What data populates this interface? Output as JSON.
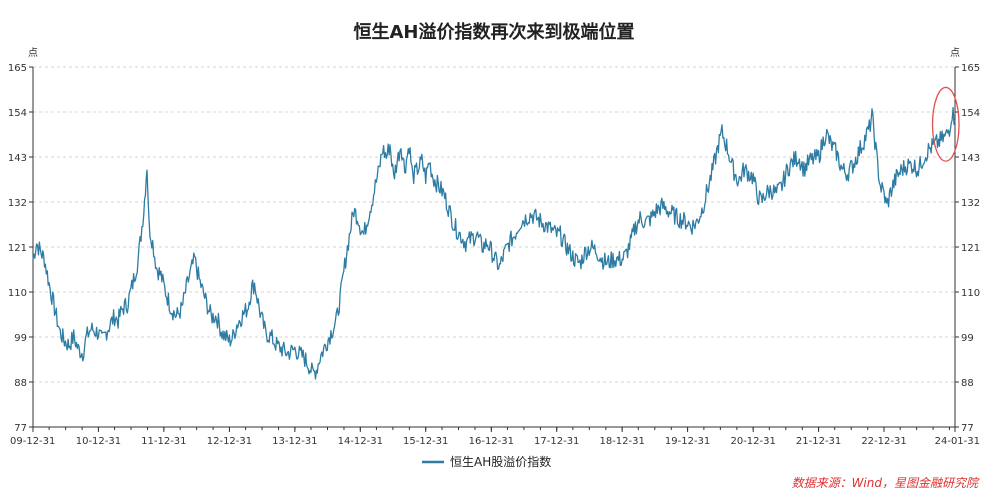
{
  "chart_data": {
    "type": "line",
    "title": "恒生AH溢价指数再次来到极端位置",
    "y_unit_left": "点",
    "y_unit_right": "点",
    "ylim": [
      77,
      165
    ],
    "yticks": [
      77,
      88,
      99,
      110,
      121,
      132,
      143,
      154,
      165
    ],
    "xlim": [
      "2009-12-31",
      "2024-01-31"
    ],
    "xticks": [
      "09-12-31",
      "10-12-31",
      "11-12-31",
      "12-12-31",
      "13-12-31",
      "14-12-31",
      "15-12-31",
      "16-12-31",
      "17-12-31",
      "18-12-31",
      "19-12-31",
      "20-12-31",
      "21-12-31",
      "22-12-31",
      "24-01-31"
    ],
    "grid": "horizontal dashed",
    "legend_position": "bottom",
    "series": [
      {
        "name": "恒生AH股溢价指数",
        "color": "#2e7ca3",
        "points": [
          [
            "2009-12-31",
            118
          ],
          [
            "2010-01-20",
            122
          ],
          [
            "2010-02-10",
            120
          ],
          [
            "2010-03-05",
            118
          ],
          [
            "2010-03-31",
            112
          ],
          [
            "2010-04-20",
            108
          ],
          [
            "2010-05-10",
            104
          ],
          [
            "2010-06-01",
            100
          ],
          [
            "2010-06-25",
            98
          ],
          [
            "2010-07-20",
            97
          ],
          [
            "2010-08-15",
            99
          ],
          [
            "2010-09-10",
            96
          ],
          [
            "2010-10-05",
            95
          ],
          [
            "2010-10-25",
            99
          ],
          [
            "2010-11-20",
            101
          ],
          [
            "2010-12-31",
            100
          ],
          [
            "2011-01-20",
            98
          ],
          [
            "2011-02-10",
            100
          ],
          [
            "2011-03-05",
            102
          ],
          [
            "2011-03-31",
            104
          ],
          [
            "2011-04-20",
            103
          ],
          [
            "2011-05-15",
            106
          ],
          [
            "2011-06-10",
            107
          ],
          [
            "2011-07-10",
            112
          ],
          [
            "2011-08-10",
            118
          ],
          [
            "2011-09-10",
            130
          ],
          [
            "2011-09-28",
            141
          ],
          [
            "2011-10-10",
            126
          ],
          [
            "2011-10-30",
            122
          ],
          [
            "2011-11-20",
            116
          ],
          [
            "2011-12-15",
            114
          ],
          [
            "2012-01-10",
            110
          ],
          [
            "2012-02-10",
            106
          ],
          [
            "2012-03-10",
            104
          ],
          [
            "2012-04-10",
            106
          ],
          [
            "2012-05-10",
            112
          ],
          [
            "2012-06-05",
            116
          ],
          [
            "2012-06-20",
            118
          ],
          [
            "2012-07-15",
            113
          ],
          [
            "2012-08-20",
            108
          ],
          [
            "2012-09-20",
            104
          ],
          [
            "2012-10-20",
            104
          ],
          [
            "2012-11-20",
            100
          ],
          [
            "2012-12-31",
            98
          ],
          [
            "2013-01-20",
            99
          ],
          [
            "2013-02-10",
            102
          ],
          [
            "2013-03-10",
            104
          ],
          [
            "2013-04-10",
            106
          ],
          [
            "2013-05-05",
            111
          ],
          [
            "2013-05-20",
            112
          ],
          [
            "2013-06-20",
            105
          ],
          [
            "2013-07-20",
            100
          ],
          [
            "2013-08-20",
            99
          ],
          [
            "2013-09-20",
            97
          ],
          [
            "2013-10-20",
            96
          ],
          [
            "2013-11-20",
            95
          ],
          [
            "2013-12-31",
            96
          ],
          [
            "2014-01-20",
            95
          ],
          [
            "2014-02-20",
            94
          ],
          [
            "2014-03-20",
            92
          ],
          [
            "2014-04-10",
            90
          ],
          [
            "2014-04-30",
            91
          ],
          [
            "2014-05-20",
            94
          ],
          [
            "2014-06-20",
            97
          ],
          [
            "2014-07-20",
            100
          ],
          [
            "2014-08-20",
            103
          ],
          [
            "2014-09-15",
            110
          ],
          [
            "2014-10-10",
            118
          ],
          [
            "2014-11-05",
            125
          ],
          [
            "2014-11-25",
            130
          ],
          [
            "2014-12-20",
            128
          ],
          [
            "2014-12-31",
            126
          ],
          [
            "2015-01-20",
            124
          ],
          [
            "2015-02-10",
            128
          ],
          [
            "2015-03-05",
            132
          ],
          [
            "2015-03-25",
            136
          ],
          [
            "2015-04-15",
            140
          ],
          [
            "2015-05-05",
            145
          ],
          [
            "2015-05-25",
            143
          ],
          [
            "2015-06-15",
            146
          ],
          [
            "2015-07-05",
            138
          ],
          [
            "2015-07-25",
            142
          ],
          [
            "2015-08-15",
            146
          ],
          [
            "2015-09-05",
            140
          ],
          [
            "2015-09-30",
            146
          ],
          [
            "2015-10-20",
            138
          ],
          [
            "2015-11-15",
            140
          ],
          [
            "2015-12-10",
            142
          ],
          [
            "2015-12-31",
            138
          ],
          [
            "2016-01-20",
            142
          ],
          [
            "2016-02-10",
            138
          ],
          [
            "2016-03-10",
            136
          ],
          [
            "2016-04-10",
            134
          ],
          [
            "2016-05-10",
            130
          ],
          [
            "2016-06-10",
            126
          ],
          [
            "2016-07-10",
            124
          ],
          [
            "2016-08-10",
            122
          ],
          [
            "2016-09-10",
            123
          ],
          [
            "2016-10-10",
            124
          ],
          [
            "2016-11-10",
            121
          ],
          [
            "2016-12-10",
            122
          ],
          [
            "2016-12-31",
            120
          ],
          [
            "2017-01-20",
            118
          ],
          [
            "2017-02-15",
            116
          ],
          [
            "2017-03-10",
            119
          ],
          [
            "2017-04-10",
            122
          ],
          [
            "2017-05-10",
            124
          ],
          [
            "2017-06-10",
            127
          ],
          [
            "2017-07-10",
            128
          ],
          [
            "2017-08-10",
            129
          ],
          [
            "2017-09-10",
            128
          ],
          [
            "2017-10-10",
            127
          ],
          [
            "2017-11-10",
            126
          ],
          [
            "2017-12-31",
            124
          ],
          [
            "2018-01-20",
            124
          ],
          [
            "2018-02-10",
            122
          ],
          [
            "2018-03-10",
            120
          ],
          [
            "2018-04-10",
            118
          ],
          [
            "2018-05-10",
            117
          ],
          [
            "2018-06-10",
            120
          ],
          [
            "2018-07-10",
            121
          ],
          [
            "2018-08-10",
            120
          ],
          [
            "2018-09-10",
            118
          ],
          [
            "2018-10-10",
            117
          ],
          [
            "2018-11-10",
            118
          ],
          [
            "2018-12-31",
            118
          ],
          [
            "2019-01-20",
            119
          ],
          [
            "2019-02-15",
            122
          ],
          [
            "2019-03-15",
            126
          ],
          [
            "2019-04-10",
            128
          ],
          [
            "2019-05-10",
            127
          ],
          [
            "2019-06-10",
            128
          ],
          [
            "2019-07-10",
            130
          ],
          [
            "2019-08-10",
            131
          ],
          [
            "2019-09-10",
            130
          ],
          [
            "2019-10-10",
            129
          ],
          [
            "2019-11-10",
            128
          ],
          [
            "2019-12-31",
            127
          ],
          [
            "2020-01-20",
            126
          ],
          [
            "2020-02-20",
            127
          ],
          [
            "2020-03-20",
            130
          ],
          [
            "2020-04-20",
            135
          ],
          [
            "2020-05-20",
            140
          ],
          [
            "2020-06-20",
            146
          ],
          [
            "2020-07-10",
            149
          ],
          [
            "2020-08-10",
            145
          ],
          [
            "2020-09-10",
            140
          ],
          [
            "2020-10-10",
            137
          ],
          [
            "2020-11-10",
            140
          ],
          [
            "2020-12-31",
            138
          ],
          [
            "2021-01-20",
            134
          ],
          [
            "2021-02-15",
            132
          ],
          [
            "2021-03-10",
            134
          ],
          [
            "2021-04-10",
            135
          ],
          [
            "2021-05-10",
            134
          ],
          [
            "2021-06-10",
            136
          ],
          [
            "2021-07-10",
            140
          ],
          [
            "2021-08-10",
            142
          ],
          [
            "2021-09-10",
            143
          ],
          [
            "2021-10-10",
            140
          ],
          [
            "2021-11-10",
            142
          ],
          [
            "2021-12-31",
            143
          ],
          [
            "2022-01-20",
            146
          ],
          [
            "2022-02-10",
            149
          ],
          [
            "2022-03-10",
            146
          ],
          [
            "2022-04-10",
            144
          ],
          [
            "2022-05-10",
            140
          ],
          [
            "2022-06-10",
            139
          ],
          [
            "2022-07-10",
            141
          ],
          [
            "2022-08-10",
            144
          ],
          [
            "2022-09-10",
            147
          ],
          [
            "2022-10-10",
            150
          ],
          [
            "2022-10-25",
            153
          ],
          [
            "2022-11-05",
            149
          ],
          [
            "2022-11-20",
            143
          ],
          [
            "2022-12-10",
            136
          ],
          [
            "2022-12-31",
            134
          ],
          [
            "2023-01-15",
            131
          ],
          [
            "2023-02-10",
            135
          ],
          [
            "2023-03-10",
            138
          ],
          [
            "2023-04-10",
            140
          ],
          [
            "2023-05-10",
            141
          ],
          [
            "2023-06-10",
            141
          ],
          [
            "2023-07-10",
            140
          ],
          [
            "2023-08-10",
            143
          ],
          [
            "2023-09-10",
            145
          ],
          [
            "2023-10-10",
            146
          ],
          [
            "2023-11-10",
            147
          ],
          [
            "2023-12-10",
            148
          ],
          [
            "2023-12-31",
            150
          ],
          [
            "2024-01-15",
            154
          ],
          [
            "2024-01-31",
            152
          ]
        ]
      }
    ],
    "annotation": {
      "type": "ellipse-highlight",
      "color": "#e05050",
      "x_start": "2023-10-20",
      "x_end": "2024-01-31",
      "y_low": 142,
      "y_high": 160
    }
  },
  "legend": {
    "label": "恒生AH股溢价指数"
  },
  "source": "数据来源：Wind，星图金融研究院"
}
